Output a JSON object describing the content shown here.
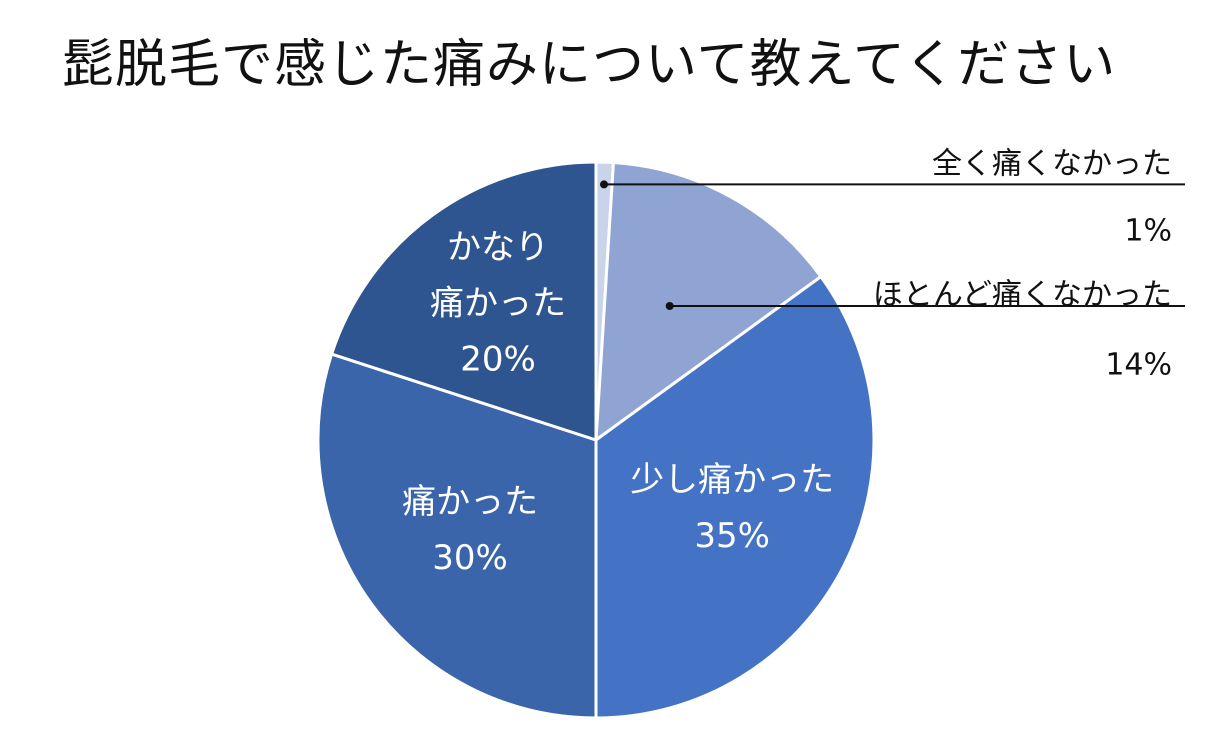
{
  "chart_data": {
    "type": "pie",
    "title": "髭脱毛で感じた痛みについて教えてください",
    "slices": [
      {
        "label": "全く痛くなかった",
        "value": 1,
        "value_label": "1%",
        "color": "#c9d3ea",
        "label_placement": "outside"
      },
      {
        "label": "ほとんど痛くなかった",
        "value": 14,
        "value_label": "14%",
        "color": "#8fa4d2",
        "label_placement": "outside"
      },
      {
        "label": "少し痛かった",
        "value": 35,
        "value_label": "35%",
        "color": "#4472c4",
        "label_placement": "inside"
      },
      {
        "label": "痛かった",
        "value": 30,
        "value_label": "30%",
        "color": "#3b65aa",
        "label_placement": "inside"
      },
      {
        "label": "かなり痛かった",
        "value": 20,
        "value_label": "20%",
        "color": "#2f5590",
        "label_placement": "inside",
        "label_lines": [
          "かなり",
          "痛かった"
        ]
      }
    ],
    "start_angle": "12 o'clock",
    "direction": "clockwise",
    "legend": "none"
  }
}
